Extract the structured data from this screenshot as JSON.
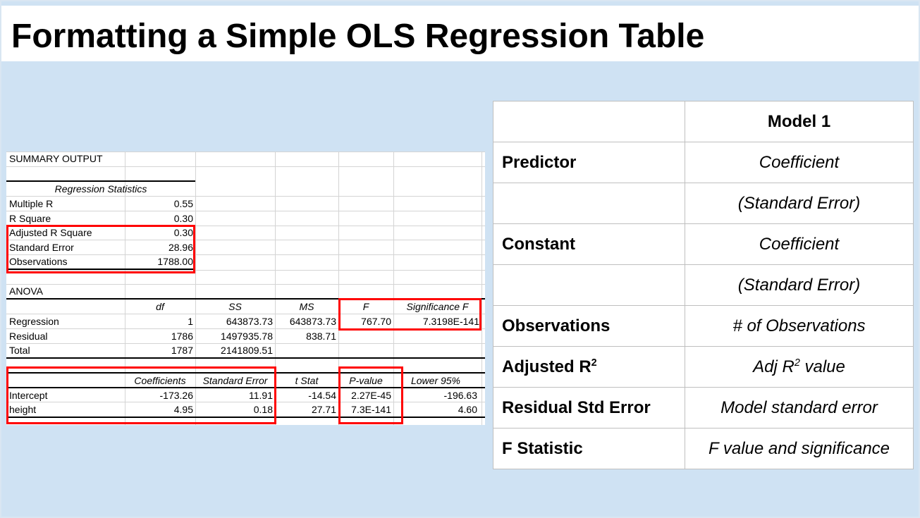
{
  "title": "Formatting a Simple OLS Regression Table",
  "excel": {
    "summary_output": "SUMMARY OUTPUT",
    "regression_statistics": "Regression Statistics",
    "stats": [
      {
        "label": "Multiple R",
        "value": "0.55"
      },
      {
        "label": "R Square",
        "value": "0.30"
      },
      {
        "label": "Adjusted R Square",
        "value": "0.30"
      },
      {
        "label": "Standard Error",
        "value": "28.96"
      },
      {
        "label": "Observations",
        "value": "1788.00"
      }
    ],
    "anova": "ANOVA",
    "anova_headers": [
      "df",
      "SS",
      "MS",
      "F",
      "Significance F"
    ],
    "anova_rows": [
      {
        "label": "Regression",
        "df": "1",
        "ss": "643873.73",
        "ms": "643873.73",
        "f": "767.70",
        "sigf": "7.3198E-141"
      },
      {
        "label": "Residual",
        "df": "1786",
        "ss": "1497935.78",
        "ms": "838.71",
        "f": "",
        "sigf": ""
      },
      {
        "label": "Total",
        "df": "1787",
        "ss": "2141809.51",
        "ms": "",
        "f": "",
        "sigf": ""
      }
    ],
    "coef_headers": [
      "Coefficients",
      "Standard Error",
      "t Stat",
      "P-value",
      "Lower 95%"
    ],
    "coef_rows": [
      {
        "label": "Intercept",
        "coef": "-173.26",
        "se": "11.91",
        "t": "-14.54",
        "p": "2.27E-45",
        "lower": "-196.63"
      },
      {
        "label": "height",
        "coef": "4.95",
        "se": "0.18",
        "t": "27.71",
        "p": "7.3E-141",
        "lower": "4.60"
      }
    ]
  },
  "model_table": {
    "header": "Model 1",
    "rows": [
      {
        "label": "Predictor",
        "value": "Coefficient"
      },
      {
        "label": "",
        "value": "(Standard Error)"
      },
      {
        "label": "Constant",
        "value": "Coefficient"
      },
      {
        "label": "",
        "value": "(Standard Error)"
      },
      {
        "label": "Observations",
        "value": "# of Observations"
      },
      {
        "label": "Adjusted R",
        "label_sup": "2",
        "value": "Adj R",
        "value_sup": "2",
        "value_suffix": " value"
      },
      {
        "label": "Residual Std Error",
        "value": "Model standard error"
      },
      {
        "label": "F Statistic",
        "value": "F value and significance"
      }
    ]
  },
  "colors": {
    "background": "#cfe2f3",
    "highlight_box": "#ff0000"
  }
}
